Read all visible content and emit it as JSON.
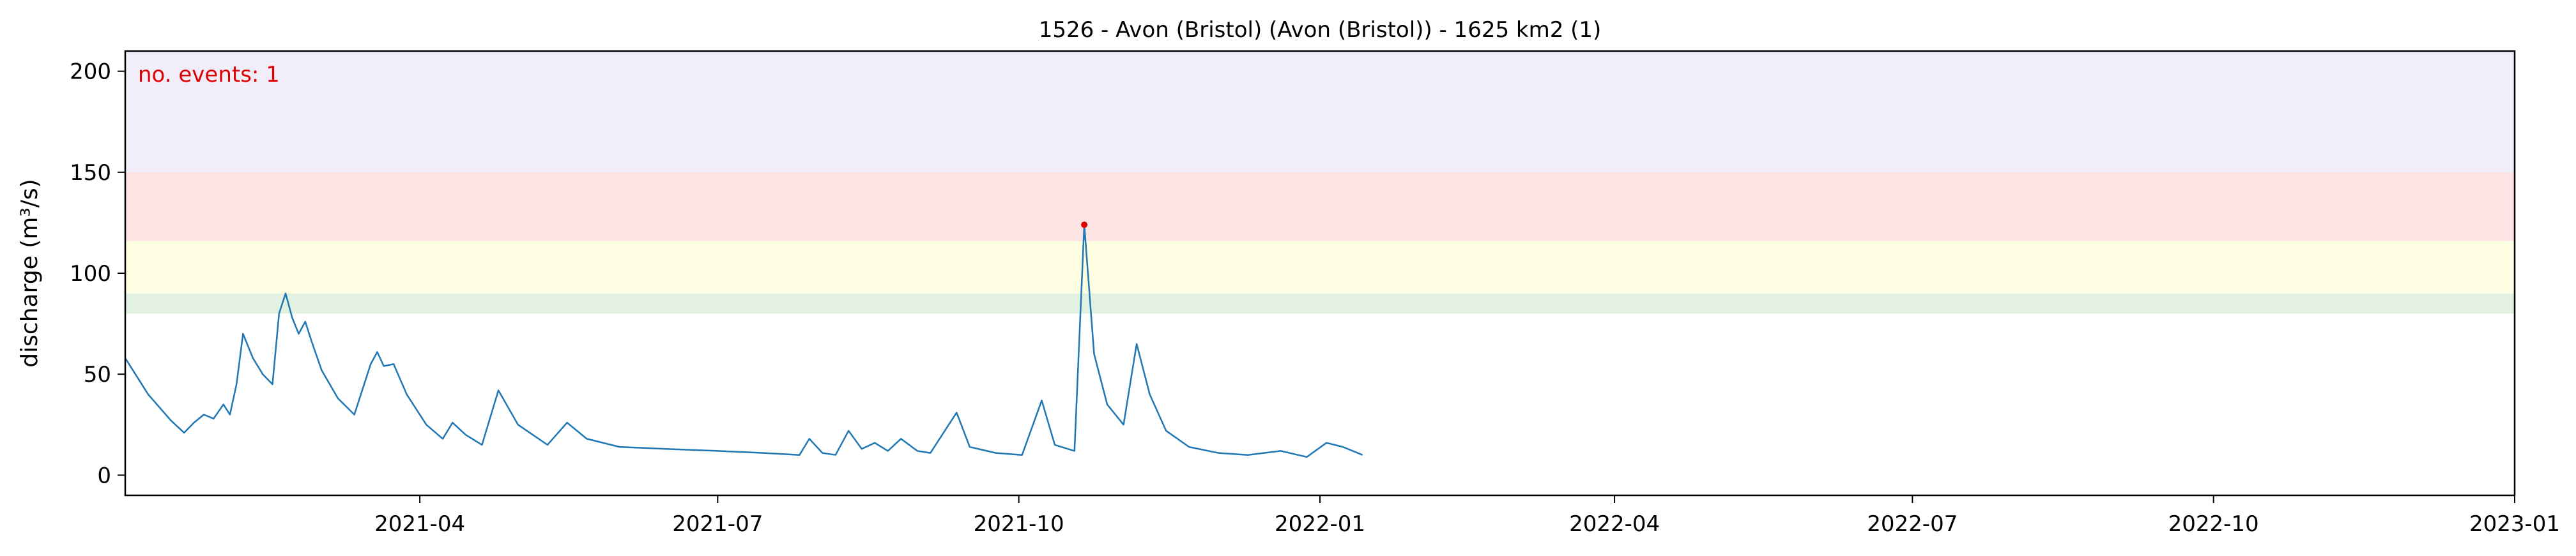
{
  "chart_data": {
    "type": "line",
    "title": "1526 - Avon (Bristol) (Avon (Bristol)) - 1625 km2 (1)",
    "xlabel": "",
    "ylabel": "discharge (m³/s)",
    "xlim": [
      "2021-01-01",
      "2023-01-01"
    ],
    "ylim": [
      -10,
      210
    ],
    "x_ticks": [
      "2021-04-01",
      "2021-07-01",
      "2021-10-01",
      "2022-01-01",
      "2022-04-01",
      "2022-07-01",
      "2022-10-01",
      "2023-01-01"
    ],
    "x_tick_labels": [
      "2021-04",
      "2021-07",
      "2021-10",
      "2022-01",
      "2022-04",
      "2022-07",
      "2022-10",
      "2023-01"
    ],
    "y_ticks": [
      0,
      50,
      100,
      150,
      200
    ],
    "y_tick_labels": [
      "0",
      "50",
      "100",
      "150",
      "200"
    ],
    "threshold_bands": [
      {
        "from": 80,
        "to": 90,
        "color": "#e3f1e3"
      },
      {
        "from": 90,
        "to": 116,
        "color": "#fefee3"
      },
      {
        "from": 116,
        "to": 150,
        "color": "#fee3e5"
      },
      {
        "from": 150,
        "to": 210,
        "color": "#f1eefa"
      }
    ],
    "annotation": {
      "text": "no. events: 1",
      "color": "#dd0000",
      "position": "top-left"
    },
    "event_points": [
      {
        "x": "2021-10-21",
        "y": 124
      }
    ],
    "series": [
      {
        "color": "#1f77b4",
        "points": [
          [
            "2021-01-01",
            58
          ],
          [
            "2021-01-08",
            40
          ],
          [
            "2021-01-15",
            27
          ],
          [
            "2021-01-19",
            21
          ],
          [
            "2021-01-22",
            26
          ],
          [
            "2021-01-25",
            30
          ],
          [
            "2021-01-28",
            28
          ],
          [
            "2021-01-31",
            35
          ],
          [
            "2021-02-02",
            30
          ],
          [
            "2021-02-04",
            45
          ],
          [
            "2021-02-06",
            70
          ],
          [
            "2021-02-09",
            58
          ],
          [
            "2021-02-12",
            50
          ],
          [
            "2021-02-15",
            45
          ],
          [
            "2021-02-17",
            80
          ],
          [
            "2021-02-19",
            90
          ],
          [
            "2021-02-21",
            78
          ],
          [
            "2021-02-23",
            70
          ],
          [
            "2021-02-25",
            76
          ],
          [
            "2021-02-27",
            66
          ],
          [
            "2021-03-02",
            52
          ],
          [
            "2021-03-07",
            38
          ],
          [
            "2021-03-12",
            30
          ],
          [
            "2021-03-15",
            45
          ],
          [
            "2021-03-17",
            55
          ],
          [
            "2021-03-19",
            61
          ],
          [
            "2021-03-21",
            54
          ],
          [
            "2021-03-24",
            55
          ],
          [
            "2021-03-28",
            40
          ],
          [
            "2021-04-03",
            25
          ],
          [
            "2021-04-08",
            18
          ],
          [
            "2021-04-11",
            26
          ],
          [
            "2021-04-15",
            20
          ],
          [
            "2021-04-20",
            15
          ],
          [
            "2021-04-25",
            42
          ],
          [
            "2021-05-01",
            25
          ],
          [
            "2021-05-10",
            15
          ],
          [
            "2021-05-16",
            26
          ],
          [
            "2021-05-22",
            18
          ],
          [
            "2021-06-01",
            14
          ],
          [
            "2021-06-15",
            13
          ],
          [
            "2021-07-01",
            12
          ],
          [
            "2021-07-15",
            11
          ],
          [
            "2021-07-26",
            10
          ],
          [
            "2021-07-29",
            18
          ],
          [
            "2021-08-02",
            11
          ],
          [
            "2021-08-06",
            10
          ],
          [
            "2021-08-10",
            22
          ],
          [
            "2021-08-14",
            13
          ],
          [
            "2021-08-18",
            16
          ],
          [
            "2021-08-22",
            12
          ],
          [
            "2021-08-26",
            18
          ],
          [
            "2021-08-31",
            12
          ],
          [
            "2021-09-04",
            11
          ],
          [
            "2021-09-12",
            31
          ],
          [
            "2021-09-16",
            14
          ],
          [
            "2021-09-24",
            11
          ],
          [
            "2021-10-02",
            10
          ],
          [
            "2021-10-08",
            37
          ],
          [
            "2021-10-12",
            15
          ],
          [
            "2021-10-18",
            12
          ],
          [
            "2021-10-21",
            124
          ],
          [
            "2021-10-24",
            60
          ],
          [
            "2021-10-28",
            35
          ],
          [
            "2021-11-02",
            25
          ],
          [
            "2021-11-06",
            65
          ],
          [
            "2021-11-10",
            40
          ],
          [
            "2021-11-15",
            22
          ],
          [
            "2021-11-22",
            14
          ],
          [
            "2021-12-01",
            11
          ],
          [
            "2021-12-10",
            10
          ],
          [
            "2021-12-20",
            12
          ],
          [
            "2021-12-28",
            9
          ],
          [
            "2022-01-03",
            16
          ],
          [
            "2022-01-08",
            14
          ],
          [
            "2022-01-14",
            10
          ]
        ]
      }
    ]
  }
}
